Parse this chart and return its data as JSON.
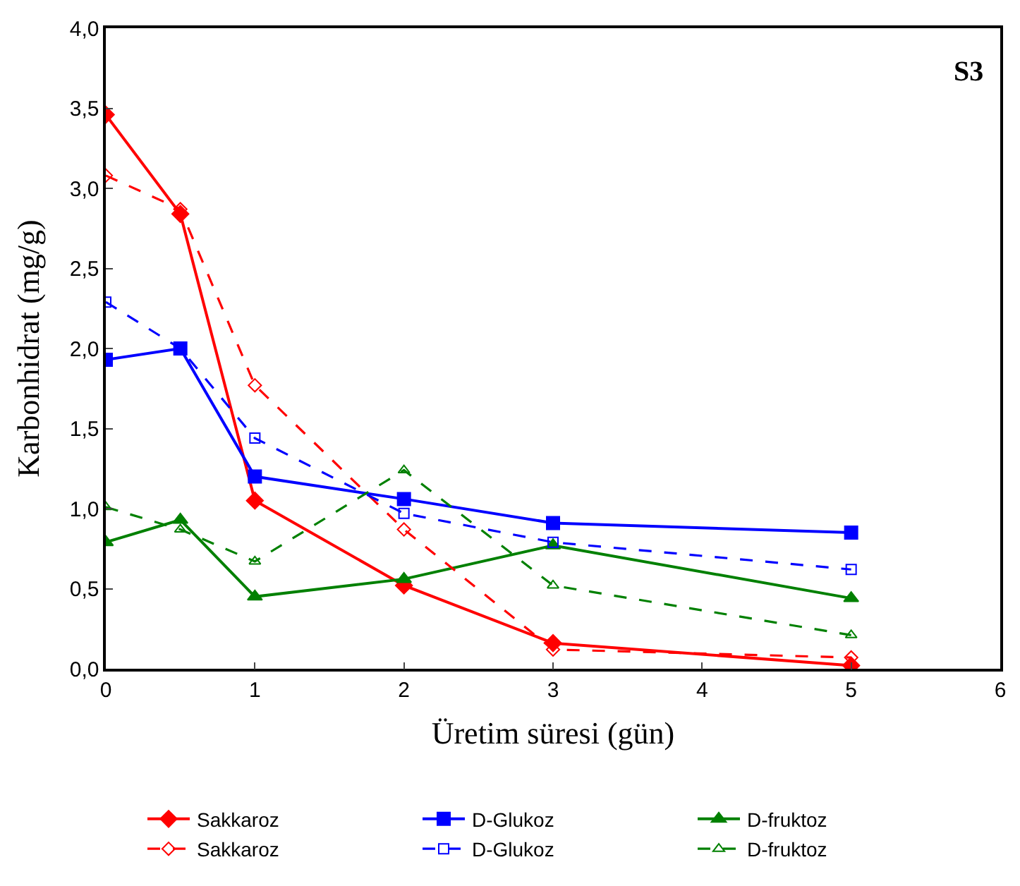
{
  "chart_data": {
    "type": "line",
    "xlabel": "Üretim süresi (gün)",
    "ylabel": "Karbonhidrat (mg/g)",
    "annotations": [
      "S3"
    ],
    "x": [
      0,
      0.5,
      1,
      2,
      3,
      5
    ],
    "xlim": [
      0,
      6
    ],
    "xticks": [
      0,
      1,
      2,
      3,
      4,
      5,
      6
    ],
    "ylim": [
      0,
      4
    ],
    "yticks": [
      {
        "value": 0,
        "label": "0,0"
      },
      {
        "value": 0.5,
        "label": "0,5"
      },
      {
        "value": 1,
        "label": "1,0"
      },
      {
        "value": 1.5,
        "label": "1,5"
      },
      {
        "value": 2,
        "label": "2,0"
      },
      {
        "value": 2.5,
        "label": "2,5"
      },
      {
        "value": 3,
        "label": "3,0"
      },
      {
        "value": 3.5,
        "label": "3,5"
      },
      {
        "value": 4,
        "label": "4,0"
      }
    ],
    "legend": "bottom",
    "series": [
      {
        "name": "Sakkaroz",
        "color": "#ff0000",
        "marker": "diamond",
        "line_style": "solid",
        "values": [
          3.46,
          2.84,
          1.05,
          0.52,
          0.16,
          0.02
        ]
      },
      {
        "name": "D-Glukoz",
        "color": "#0000ff",
        "marker": "square",
        "line_style": "solid",
        "values": [
          1.93,
          2.0,
          1.2,
          1.06,
          0.91,
          0.85
        ]
      },
      {
        "name": "D-fruktoz",
        "color": "#008000",
        "marker": "triangle",
        "line_style": "solid",
        "values": [
          0.79,
          0.93,
          0.45,
          0.56,
          0.77,
          0.44
        ]
      },
      {
        "name": "Sakkaroz",
        "color": "#ff0000",
        "marker": "diamond",
        "line_style": "dashed",
        "values": [
          3.08,
          2.87,
          1.77,
          0.87,
          0.12,
          0.07
        ]
      },
      {
        "name": "D-Glukoz",
        "color": "#0000ff",
        "marker": "square",
        "line_style": "dashed",
        "values": [
          2.29,
          2.0,
          1.44,
          0.97,
          0.79,
          0.62
        ]
      },
      {
        "name": "D-fruktoz",
        "color": "#008000",
        "marker": "triangle",
        "line_style": "dashed",
        "values": [
          1.01,
          0.87,
          0.67,
          1.24,
          0.52,
          0.21
        ]
      }
    ]
  }
}
